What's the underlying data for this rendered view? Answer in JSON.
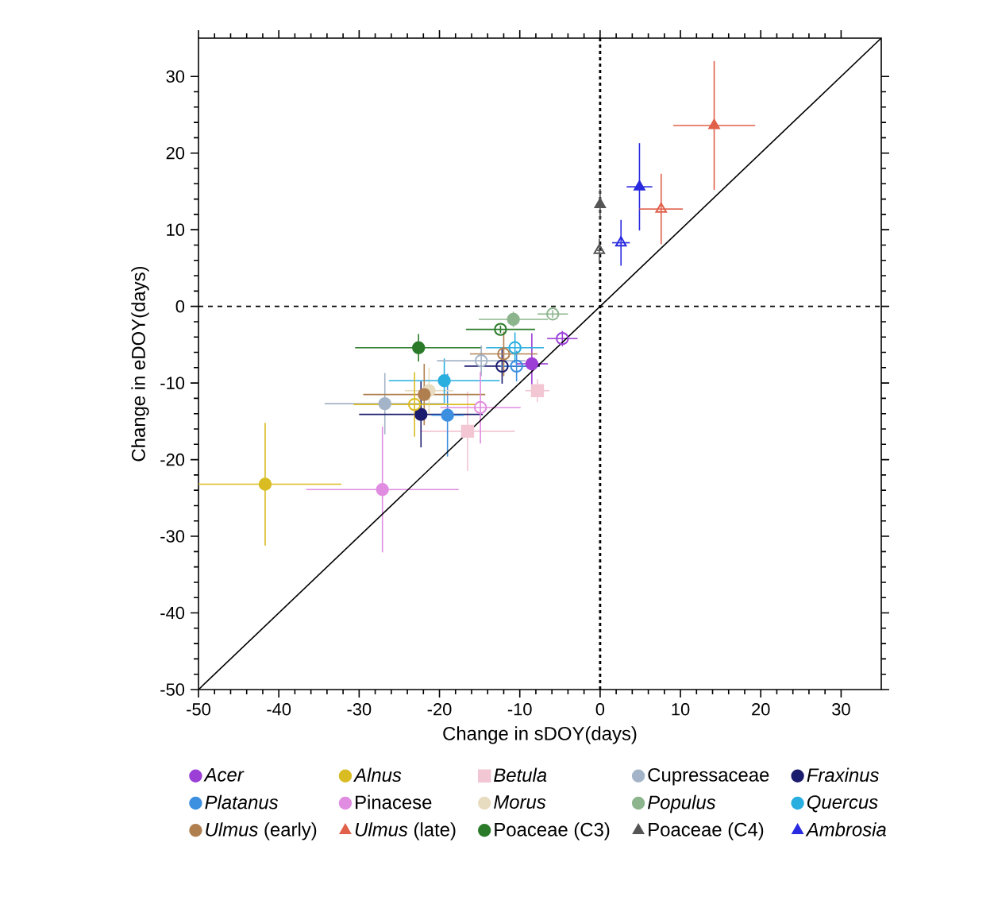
{
  "chart_data": {
    "type": "scatter",
    "xlabel": "Change in sDOY(days)",
    "ylabel": "Change in eDOY(days)",
    "xlim": [
      -50,
      35
    ],
    "ylim": [
      -50,
      35
    ],
    "xticks": [
      -50,
      -40,
      -30,
      -20,
      -10,
      0,
      10,
      20,
      30
    ],
    "yticks": [
      -50,
      -40,
      -30,
      -20,
      -10,
      0,
      10,
      20,
      30
    ],
    "grid": false,
    "legend": "bottom",
    "ref_lines": [
      {
        "axis": "x",
        "value": 0,
        "color": "#000000",
        "line_style": "dotted"
      },
      {
        "axis": "y",
        "value": 0,
        "color": "#000000",
        "line_style": "dashed"
      }
    ],
    "series": [
      {
        "name": "*Acer*",
        "color": "#9b3fd6",
        "marker": "circle",
        "x": [
          -8.5
        ],
        "values": [
          -7.5
        ],
        "errors": [
          4
        ],
        "xerrors": [
          2
        ]
      },
      {
        "name": "*Alnus*",
        "color": "#d9bc22",
        "marker": "circle",
        "x": [
          -41.7
        ],
        "values": [
          -23.2
        ],
        "errors": [
          8
        ],
        "xerrors": [
          9.5
        ]
      },
      {
        "name": "*Betula*",
        "color": "#f2c6d3",
        "marker": "square",
        "x": [
          -16.5,
          -7.8
        ],
        "values": [
          -16.3,
          -11.0
        ],
        "errors": [
          5.2,
          1.5
        ],
        "xerrors": [
          5.9,
          1.5
        ]
      },
      {
        "name": "Cupressaceae",
        "color": "#a4b4c8",
        "marker": "circle",
        "x": [
          -26.8
        ],
        "values": [
          -12.7
        ],
        "errors": [
          4
        ],
        "xerrors": [
          7.5
        ]
      },
      {
        "name": "*Fraxinus*",
        "color": "#1c1c6e",
        "marker": "circle",
        "x": [
          -22.3
        ],
        "values": [
          -14.1
        ],
        "errors": [
          4.3
        ],
        "xerrors": [
          7.7
        ]
      },
      {
        "name": "*Platanus*",
        "color": "#3d8fe0",
        "marker": "circle",
        "x": [
          -19.0
        ],
        "values": [
          -14.2
        ],
        "errors": [
          5.4
        ],
        "xerrors": [
          2
        ]
      },
      {
        "name": "Pinacese",
        "color": "#e08ce0",
        "marker": "circle",
        "x": [
          -27.1
        ],
        "values": [
          -23.9
        ],
        "errors": [
          8.2
        ],
        "xerrors": [
          9.5
        ]
      },
      {
        "name": "*Morus*",
        "color": "#e8dcc0",
        "marker": "circle",
        "x": [
          -21.3
        ],
        "values": [
          -11.0
        ],
        "errors": [
          3
        ],
        "xerrors": [
          3
        ]
      },
      {
        "name": "*Populus*",
        "color": "#8db58d",
        "marker": "circle",
        "x": [
          -10.8
        ],
        "values": [
          -1.7
        ],
        "errors": [
          1
        ],
        "xerrors": [
          4.3
        ]
      },
      {
        "name": "*Quercus*",
        "color": "#29aee0",
        "marker": "circle",
        "x": [
          -19.4
        ],
        "values": [
          -9.7
        ],
        "errors": [
          2.9
        ],
        "xerrors": [
          6.9
        ]
      },
      {
        "name": "*Ulmus* (early)",
        "color": "#b07f4f",
        "marker": "circle",
        "x": [
          -21.9
        ],
        "values": [
          -11.5
        ],
        "errors": [
          4
        ],
        "xerrors": [
          7.6
        ]
      },
      {
        "name": "*Ulmus* (late)",
        "color": "#e0604a",
        "marker": "triangle",
        "x": [
          14.2
        ],
        "values": [
          23.6
        ],
        "errors": [
          8.4
        ],
        "xerrors": [
          5.1
        ]
      },
      {
        "name": "Poaceae (C3)",
        "color": "#2a7a2a",
        "marker": "circle",
        "x": [
          -22.6
        ],
        "values": [
          -5.4
        ],
        "errors": [
          1.8
        ],
        "xerrors": [
          7.9
        ]
      },
      {
        "name": "Poaceae (C4)",
        "color": "#555555",
        "marker": "triangle",
        "x": [
          0.0
        ],
        "values": [
          13.3
        ],
        "errors": [
          2
        ],
        "xerrors": [
          0.3
        ]
      },
      {
        "name": "*Ambrosia*",
        "color": "#2a2ae0",
        "marker": "triangle",
        "x": [
          4.9
        ],
        "values": [
          15.6
        ],
        "errors": [
          5.7
        ],
        "xerrors": [
          1.6
        ]
      },
      {
        "color": "#9b3fd6",
        "marker": "circle",
        "x": [
          -4.7
        ],
        "values": [
          -4.2
        ],
        "errors": [
          1
        ],
        "xerrors": [
          1.9
        ]
      },
      {
        "color": "#d9bc22",
        "marker": "circle",
        "x": [
          -23.1
        ],
        "values": [
          -12.8
        ],
        "errors": [
          4.2
        ],
        "xerrors": [
          7.6
        ]
      },
      {
        "color": "#a4b4c8",
        "marker": "circle",
        "x": [
          -14.8
        ],
        "values": [
          -7.1
        ],
        "errors": [
          2
        ],
        "xerrors": [
          5.5
        ]
      },
      {
        "color": "#1c1c6e",
        "marker": "circle",
        "x": [
          -12.2
        ],
        "values": [
          -7.8
        ],
        "errors": [
          2.3
        ],
        "xerrors": [
          4.7
        ]
      },
      {
        "color": "#3d8fe0",
        "marker": "circle",
        "x": [
          -10.4
        ],
        "values": [
          -7.8
        ],
        "errors": [
          2
        ],
        "xerrors": [
          2
        ]
      },
      {
        "color": "#e08ce0",
        "marker": "circle",
        "x": [
          -14.9
        ],
        "values": [
          -13.2
        ],
        "errors": [
          4.7
        ],
        "xerrors": [
          5
        ]
      },
      {
        "color": "#8db58d",
        "marker": "circle",
        "x": [
          -5.9
        ],
        "values": [
          -1.0
        ],
        "errors": [
          0.5
        ],
        "xerrors": [
          1.9
        ]
      },
      {
        "color": "#29aee0",
        "marker": "circle",
        "x": [
          -10.6
        ],
        "values": [
          -5.4
        ],
        "errors": [
          2
        ],
        "xerrors": [
          3.6
        ]
      },
      {
        "color": "#b07f4f",
        "marker": "circle",
        "x": [
          -12.0
        ],
        "values": [
          -6.2
        ],
        "errors": [
          2.9
        ],
        "xerrors": [
          4.2
        ]
      },
      {
        "color": "#e0604a",
        "marker": "triangle",
        "x": [
          7.6
        ],
        "values": [
          12.7
        ],
        "errors": [
          4.6
        ],
        "xerrors": [
          2.7
        ]
      },
      {
        "color": "#2a7a2a",
        "marker": "circle",
        "x": [
          -12.4
        ],
        "values": [
          -3.0
        ],
        "errors": [
          0.5
        ],
        "xerrors": [
          4.3
        ]
      },
      {
        "color": "#555555",
        "marker": "triangle",
        "x": [
          -0.1
        ],
        "values": [
          7.3
        ],
        "errors": [
          1.5
        ],
        "xerrors": [
          0.3
        ]
      },
      {
        "color": "#2a2ae0",
        "marker": "triangle",
        "x": [
          2.6
        ],
        "values": [
          8.3
        ],
        "errors": [
          3
        ],
        "xerrors": [
          1.1
        ]
      },
      {
        "type": "line",
        "color": "#000000",
        "x": [
          -50,
          35
        ],
        "values": [
          -50,
          35
        ]
      }
    ]
  }
}
